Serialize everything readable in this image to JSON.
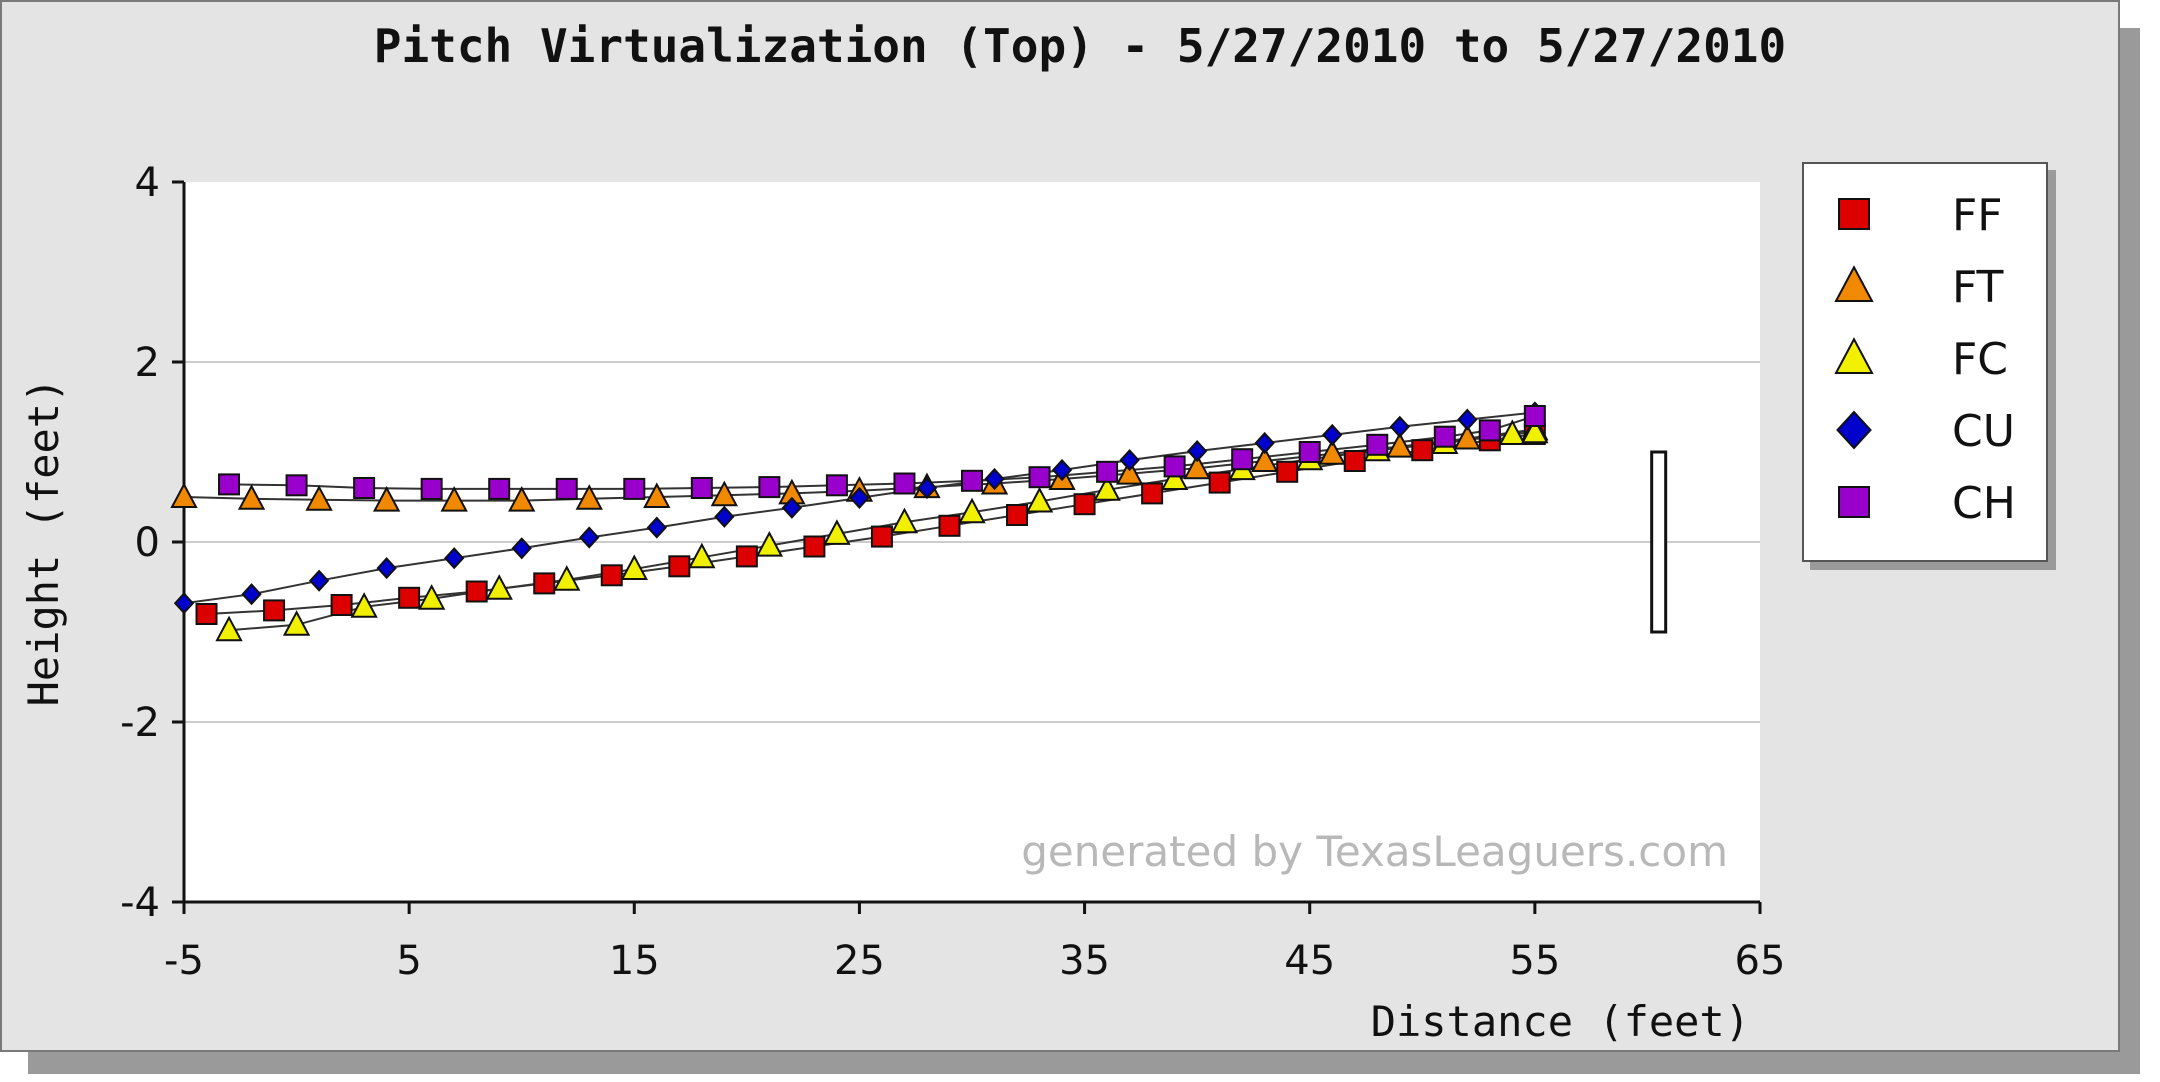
{
  "chart_data": {
    "type": "scatter",
    "title": "Pitch Virtualization (Top) - 5/27/2010 to 5/27/2010",
    "xlabel": "Distance (feet)",
    "ylabel": "Height (feet)",
    "xlim": [
      -5,
      65
    ],
    "ylim": [
      -4,
      4
    ],
    "xticks": [
      -5,
      5,
      15,
      25,
      35,
      45,
      55,
      65
    ],
    "yticks": [
      4,
      2,
      0,
      -2,
      -4
    ],
    "grid": true,
    "legend_position": "right",
    "watermark": "generated by TexasLeaguers.com",
    "strike_zone": {
      "x": 60.5,
      "y_range": [
        -1,
        1
      ]
    },
    "series": [
      {
        "name": "FF",
        "marker": "square",
        "color": "#dd0000",
        "points": [
          [
            -4,
            -0.8
          ],
          [
            -1,
            -0.76
          ],
          [
            2,
            -0.7
          ],
          [
            5,
            -0.62
          ],
          [
            8,
            -0.55
          ],
          [
            11,
            -0.46
          ],
          [
            14,
            -0.37
          ],
          [
            17,
            -0.27
          ],
          [
            20,
            -0.16
          ],
          [
            23,
            -0.05
          ],
          [
            26,
            0.06
          ],
          [
            29,
            0.18
          ],
          [
            32,
            0.3
          ],
          [
            35,
            0.42
          ],
          [
            38,
            0.54
          ],
          [
            41,
            0.66
          ],
          [
            44,
            0.78
          ],
          [
            47,
            0.9
          ],
          [
            50,
            1.02
          ],
          [
            53,
            1.13
          ],
          [
            55,
            1.2
          ]
        ]
      },
      {
        "name": "FT",
        "marker": "triangle",
        "color": "#f08800",
        "points": [
          [
            -5,
            0.5
          ],
          [
            -2,
            0.48
          ],
          [
            1,
            0.47
          ],
          [
            4,
            0.46
          ],
          [
            7,
            0.46
          ],
          [
            10,
            0.46
          ],
          [
            13,
            0.48
          ],
          [
            16,
            0.5
          ],
          [
            19,
            0.52
          ],
          [
            22,
            0.54
          ],
          [
            25,
            0.57
          ],
          [
            28,
            0.61
          ],
          [
            31,
            0.65
          ],
          [
            34,
            0.7
          ],
          [
            37,
            0.76
          ],
          [
            40,
            0.82
          ],
          [
            43,
            0.9
          ],
          [
            46,
            0.98
          ],
          [
            49,
            1.06
          ],
          [
            52,
            1.15
          ],
          [
            55,
            1.25
          ]
        ]
      },
      {
        "name": "FC",
        "marker": "triangle",
        "color": "#f0f000",
        "points": [
          [
            -3,
            -0.98
          ],
          [
            0,
            -0.92
          ],
          [
            3,
            -0.72
          ],
          [
            6,
            -0.63
          ],
          [
            9,
            -0.52
          ],
          [
            12,
            -0.42
          ],
          [
            15,
            -0.3
          ],
          [
            18,
            -0.17
          ],
          [
            21,
            -0.04
          ],
          [
            24,
            0.09
          ],
          [
            27,
            0.22
          ],
          [
            30,
            0.33
          ],
          [
            33,
            0.45
          ],
          [
            36,
            0.58
          ],
          [
            39,
            0.7
          ],
          [
            42,
            0.81
          ],
          [
            45,
            0.92
          ],
          [
            48,
            1.02
          ],
          [
            51,
            1.1
          ],
          [
            54,
            1.2
          ],
          [
            55,
            1.22
          ]
        ]
      },
      {
        "name": "CU",
        "marker": "diamond",
        "color": "#0000cc",
        "points": [
          [
            -5,
            -0.68
          ],
          [
            -2,
            -0.58
          ],
          [
            1,
            -0.43
          ],
          [
            4,
            -0.29
          ],
          [
            7,
            -0.18
          ],
          [
            10,
            -0.07
          ],
          [
            13,
            0.05
          ],
          [
            16,
            0.16
          ],
          [
            19,
            0.28
          ],
          [
            22,
            0.38
          ],
          [
            25,
            0.49
          ],
          [
            28,
            0.6
          ],
          [
            31,
            0.7
          ],
          [
            34,
            0.8
          ],
          [
            37,
            0.91
          ],
          [
            40,
            1.01
          ],
          [
            43,
            1.1
          ],
          [
            46,
            1.19
          ],
          [
            49,
            1.28
          ],
          [
            52,
            1.36
          ],
          [
            55,
            1.44
          ]
        ]
      },
      {
        "name": "CH",
        "marker": "square",
        "color": "#9900cc",
        "points": [
          [
            -3,
            0.64
          ],
          [
            0,
            0.63
          ],
          [
            3,
            0.6
          ],
          [
            6,
            0.59
          ],
          [
            9,
            0.59
          ],
          [
            12,
            0.59
          ],
          [
            15,
            0.59
          ],
          [
            18,
            0.6
          ],
          [
            21,
            0.61
          ],
          [
            24,
            0.63
          ],
          [
            27,
            0.65
          ],
          [
            30,
            0.68
          ],
          [
            33,
            0.72
          ],
          [
            36,
            0.78
          ],
          [
            39,
            0.84
          ],
          [
            42,
            0.92
          ],
          [
            45,
            1.0
          ],
          [
            48,
            1.08
          ],
          [
            51,
            1.17
          ],
          [
            53,
            1.24
          ],
          [
            55,
            1.4
          ]
        ]
      }
    ]
  }
}
